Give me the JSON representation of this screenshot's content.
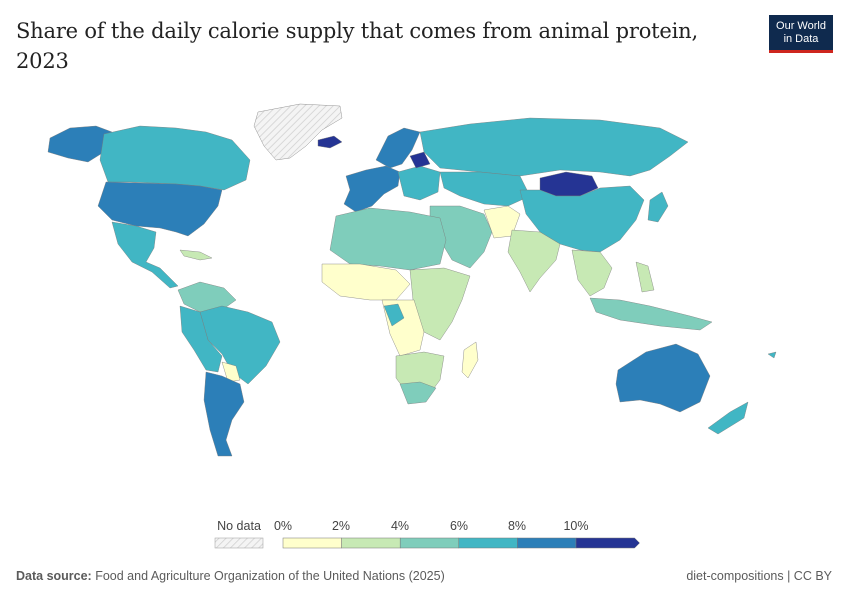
{
  "title": "Share of the daily calorie supply that comes from animal protein, 2023",
  "logo": {
    "line1": "Our World",
    "line2": "in Data"
  },
  "legend": {
    "no_data_label": "No data",
    "ticks": [
      "0%",
      "2%",
      "4%",
      "6%",
      "8%",
      "10%"
    ],
    "bins": [
      {
        "from": 0,
        "to": 2,
        "color": "#ffffcc"
      },
      {
        "from": 2,
        "to": 4,
        "color": "#c7e9b4"
      },
      {
        "from": 4,
        "to": 6,
        "color": "#7fcdbb"
      },
      {
        "from": 6,
        "to": 8,
        "color": "#41b6c4"
      },
      {
        "from": 8,
        "to": 10,
        "color": "#2c7fb8"
      },
      {
        "from": 10,
        "to": null,
        "color": "#253494"
      }
    ]
  },
  "footer": {
    "source_label": "Data source:",
    "source_text": "Food and Agriculture Organization of the United Nations (2025)",
    "right_text": "diet-compositions | CC BY"
  }
}
